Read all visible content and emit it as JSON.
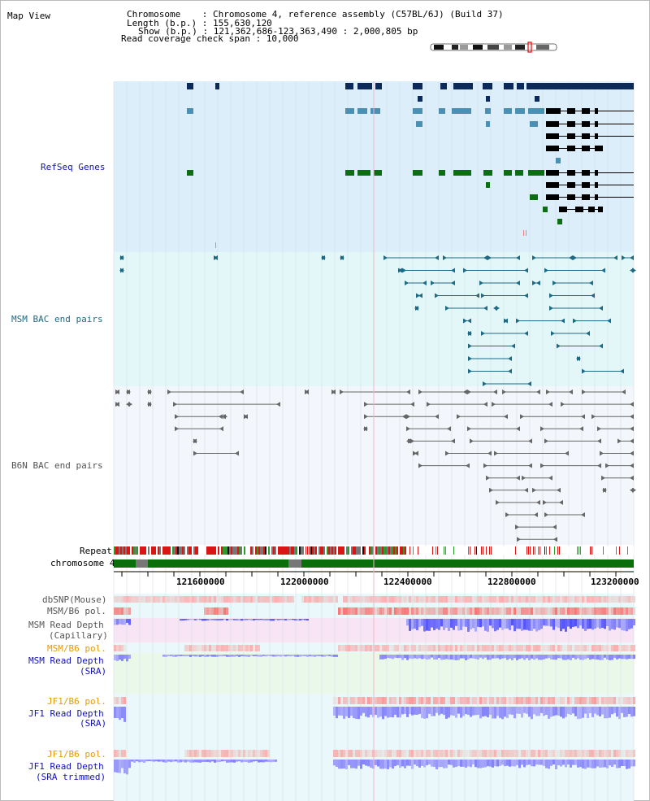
{
  "title": "Map View",
  "info": {
    "chromosome_line": "Chromosome    : Chromosome 4, reference assembly (C57BL/6J) (Build 37)",
    "length_line": "Length (b.p.) : 155,630,120",
    "show_line": "Show (b.p.) : 121,362,686-123,363,490 : 2,000,805 bp",
    "coverage_line": "Read coverage check span : 10,000"
  },
  "tracks": {
    "refseq": "RefSeq Genes",
    "msm_bac": "MSM BAC end pairs",
    "b6n_bac": "B6N BAC end pairs",
    "repeat": "Repeat",
    "chromosome": "chromosome 4",
    "dbsnp": "dbSNP(Mouse)",
    "msm_b6_pol_1": "MSM/B6 pol.",
    "msm_depth_cap_1": "MSM Read Depth",
    "msm_depth_cap_2": "(Capillary)",
    "msm_b6_pol_2": "MSM/B6 pol.",
    "msm_depth_sra_1": "MSM Read Depth",
    "msm_depth_sra_2": "(SRA)",
    "jf1_pol_1": "JF1/B6 pol.",
    "jf1_depth_sra_1": "JF1 Read Depth",
    "jf1_depth_sra_2": "(SRA)",
    "jf1_pol_2": "JF1/B6 pol.",
    "jf1_depth_trim_1": "JF1 Read Depth",
    "jf1_depth_trim_2": "(SRA trimmed)"
  },
  "axis": {
    "ticks": [
      "121600000",
      "122000000",
      "122400000",
      "122800000",
      "123200000"
    ]
  },
  "colors": {
    "refseq_bg": "#dceefa",
    "msm_bg": "#e4f7f8",
    "b6n_bg": "#f3f6fb",
    "gene_navy": "#0b2a5a",
    "gene_teal": "#4a8fb4",
    "gene_black": "#000000",
    "gene_green": "#0c6e12",
    "msm_line": "#1e6a85",
    "b6n_line": "#666666",
    "pol_red": "#e31b1b",
    "depth_blue": "#3b3bf0",
    "label_blue": "#1212b8",
    "label_orange": "#e79a07",
    "label_gray": "#555555"
  }
}
